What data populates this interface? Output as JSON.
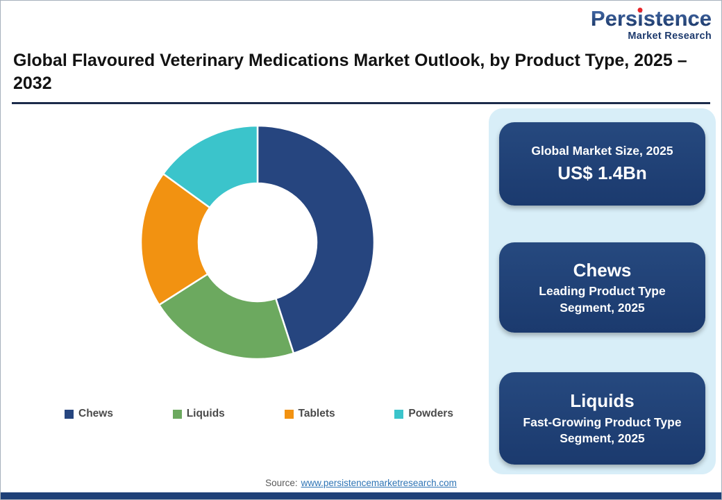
{
  "logo": {
    "brand_part1": "Pers",
    "brand_i": "i",
    "brand_part2": "stence",
    "tagline": "Market Research",
    "accent_color": "#e8252a",
    "brand_color": "#1d3a6d"
  },
  "header": {
    "title": "Global Flavoured Veterinary Medications Market Outlook, by Product Type, 2025 – 2032"
  },
  "chart_data": {
    "type": "pie",
    "subtype": "donut",
    "title": "Global Flavoured Veterinary Medications Market Outlook, by Product Type, 2025 – 2032",
    "categories": [
      "Chews",
      "Liquids",
      "Tablets",
      "Powders"
    ],
    "values": [
      45,
      21,
      19,
      15
    ],
    "values_note": "share estimated from arc angles; no numeric labels shown",
    "colors": [
      "#26457f",
      "#6ca95f",
      "#f29211",
      "#3bc4cb"
    ],
    "legend_position": "bottom",
    "donut_hole_ratio": 0.5
  },
  "sidebar": {
    "cards": [
      {
        "label": "Global Market Size, 2025",
        "value": "US$ 1.4Bn"
      },
      {
        "label": "Chews",
        "value": "Leading Product Type Segment, 2025"
      },
      {
        "label": "Liquids",
        "value": "Fast-Growing Product Type Segment, 2025"
      }
    ]
  },
  "footer": {
    "source_label": "Source:",
    "source_link": "www.persistencemarketresearch.com"
  }
}
